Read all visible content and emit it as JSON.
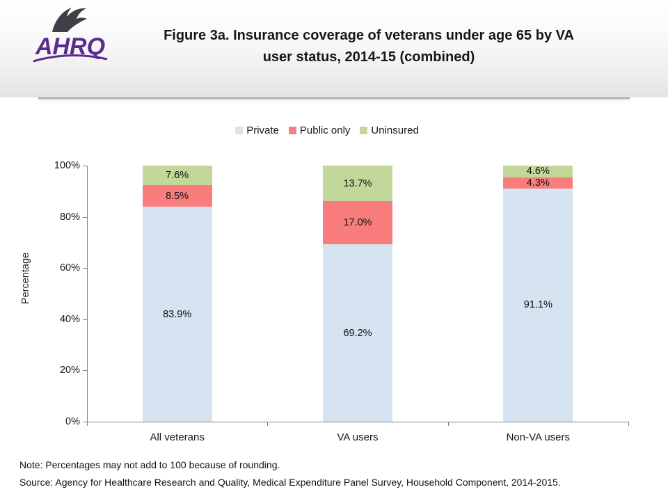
{
  "logo": {
    "text": "AHRQ",
    "eagle_icon": "hhs-eagle-icon"
  },
  "header": {
    "title_lines": [
      "Figure 3a. Insurance coverage of veterans under age 65 by VA",
      "user status, 2014-15 (combined)"
    ]
  },
  "chart_data": {
    "type": "bar",
    "stacked": true,
    "categories": [
      "All veterans",
      "VA users",
      "Non-VA users"
    ],
    "series": [
      {
        "name": "Private",
        "color": "#D6E3F1",
        "values": [
          83.9,
          69.2,
          91.1
        ]
      },
      {
        "name": "Public only",
        "color": "#F97D7D",
        "values": [
          8.5,
          17.0,
          4.3
        ]
      },
      {
        "name": "Uninsured",
        "color": "#C4D79B",
        "values": [
          7.6,
          13.7,
          4.6
        ]
      }
    ],
    "ylabel": "Percentage",
    "ylim": [
      0,
      100
    ],
    "ytick_labels": [
      "0%",
      "20%",
      "40%",
      "60%",
      "80%",
      "100%"
    ],
    "grid": false,
    "legend_position": "top",
    "value_label_suffix": "%"
  },
  "footer": {
    "note": "Note: Percentages may not add to 100 because of rounding.",
    "source": "Source: Agency for Healthcare Research and Quality, Medical Expenditure Panel Survey, Household Component, 2014-2015."
  }
}
